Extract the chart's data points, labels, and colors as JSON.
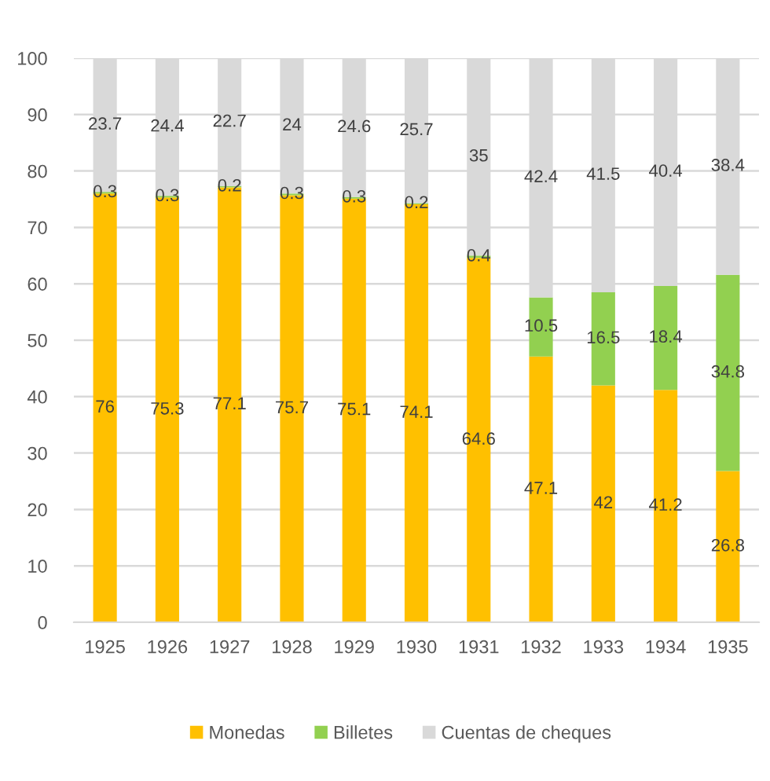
{
  "chart_data": {
    "type": "bar",
    "stacked": true,
    "categories": [
      "1925",
      "1926",
      "1927",
      "1928",
      "1929",
      "1930",
      "1931",
      "1932",
      "1933",
      "1934",
      "1935"
    ],
    "series": [
      {
        "name": "Monedas",
        "color": "#ffc000",
        "values": [
          76,
          75.3,
          77.1,
          75.7,
          75.1,
          74.1,
          64.6,
          47.1,
          42,
          41.2,
          26.8
        ]
      },
      {
        "name": "Billetes",
        "color": "#92d050",
        "values": [
          0.3,
          0.3,
          0.2,
          0.3,
          0.3,
          0.2,
          0.4,
          10.5,
          16.5,
          18.4,
          34.8
        ]
      },
      {
        "name": "Cuentas de cheques",
        "color": "#d9d9d9",
        "values": [
          23.7,
          24.4,
          22.7,
          24,
          24.6,
          25.7,
          35,
          42.4,
          41.5,
          40.4,
          38.4
        ]
      }
    ],
    "ylim": [
      0,
      100
    ],
    "yticks": [
      0,
      10,
      20,
      30,
      40,
      50,
      60,
      70,
      80,
      90,
      100
    ],
    "grid": "y",
    "legend": "bottom",
    "data_labels": true
  }
}
